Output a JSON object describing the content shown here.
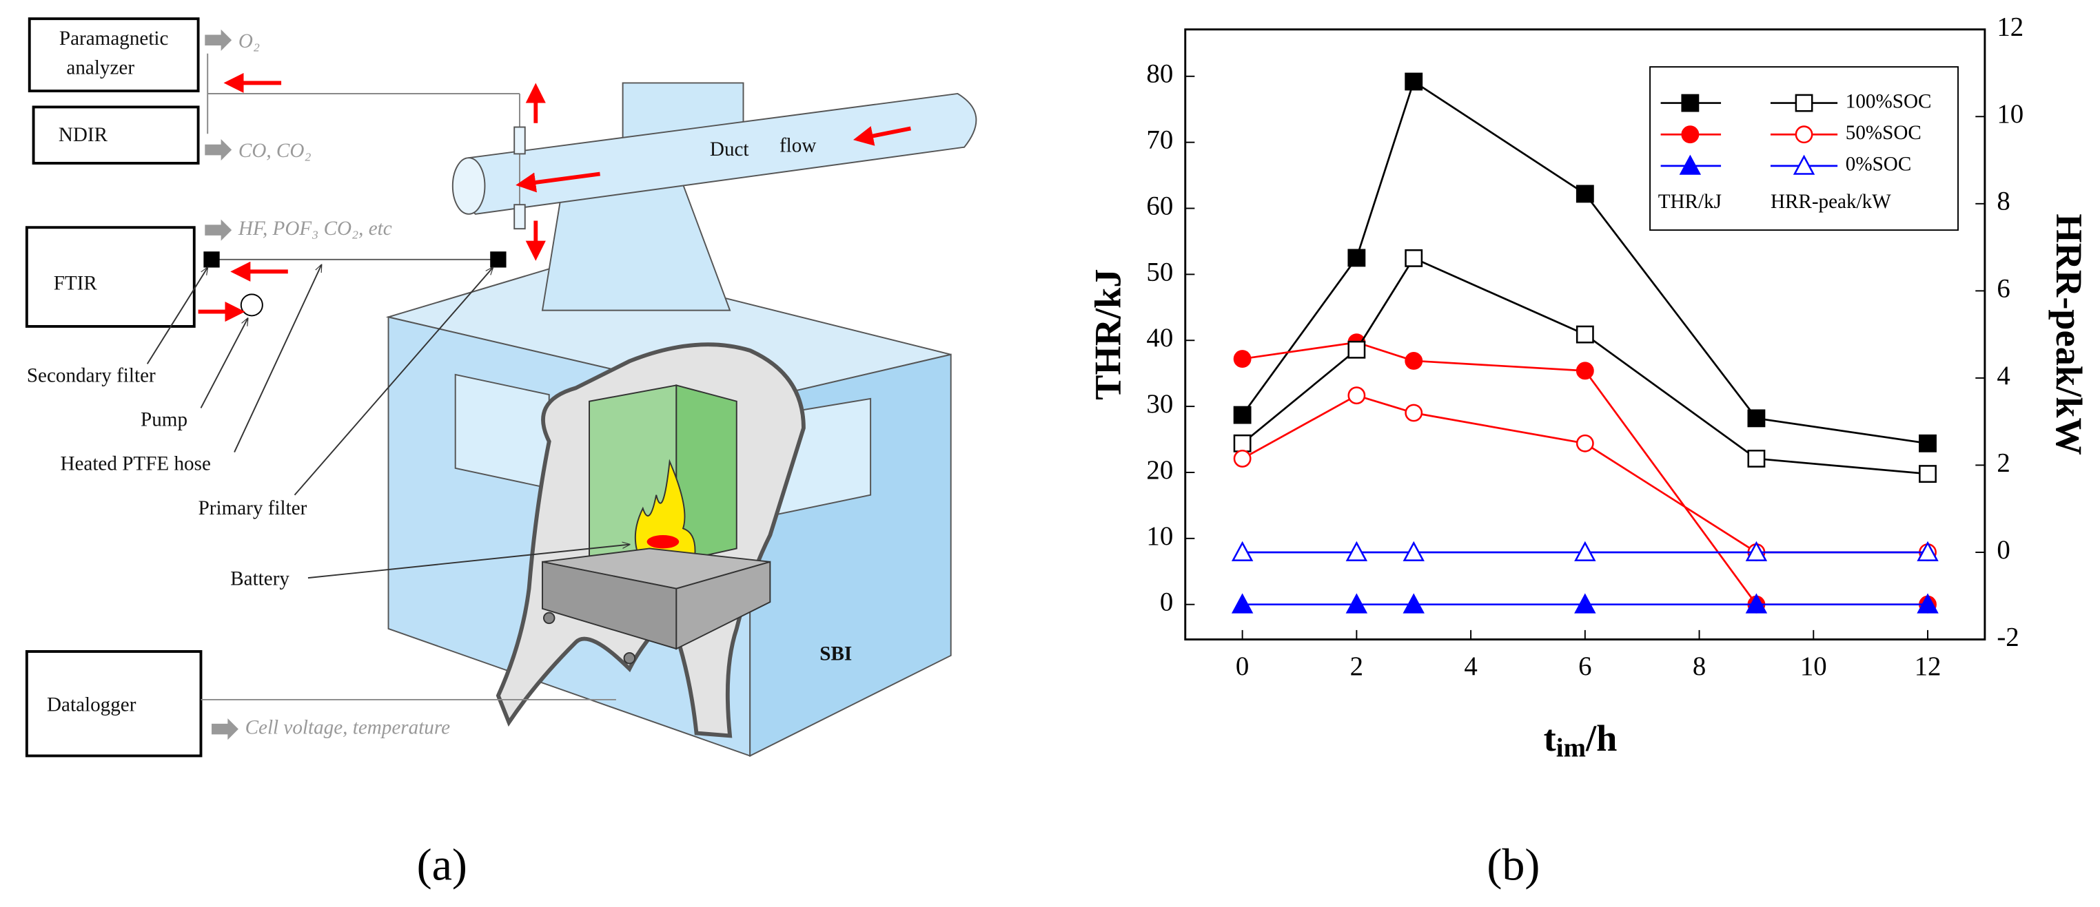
{
  "diagram": {
    "panel_label": "(a)",
    "analyzers": {
      "paramagnetic": [
        "Paramagnetic",
        "analyzer"
      ],
      "ndir": "NDIR",
      "ftir": "FTIR",
      "datalogger": "Datalogger"
    },
    "outputs": {
      "o2": "O₂",
      "co": "CO, CO₂",
      "ftir": "HF, POF₃ CO₂, etc",
      "datalogger": "Cell voltage, temperature"
    },
    "labels": {
      "secondary_filter": "Secondary filter",
      "pump": "Pump",
      "hose": "Heated PTFE hose",
      "primary_filter": "Primary filter",
      "battery": "Battery"
    },
    "duct": [
      "Duct",
      "flow"
    ],
    "sbi": "SBI"
  },
  "chart_data": {
    "type": "line",
    "panel_label": "(b)",
    "ylabel": "THR/kJ",
    "y2label": "HRR-peak/kW",
    "xlabel": [
      "t",
      "im",
      "/h"
    ],
    "x": [
      0,
      2,
      3,
      6,
      9,
      12
    ],
    "xlim": [
      -1,
      13
    ],
    "xticks": [
      0,
      2,
      4,
      6,
      8,
      10,
      12
    ],
    "ylim": [
      -5.3,
      87.1
    ],
    "yticks": [
      0,
      10,
      20,
      30,
      40,
      50,
      60,
      70,
      80
    ],
    "y2lim": [
      -2,
      12
    ],
    "y2ticks": [
      -2,
      0,
      2,
      4,
      6,
      8,
      10,
      12
    ],
    "legend": "upper right",
    "series": [
      {
        "name": "100%SOC",
        "color": "#000000",
        "marker": "square",
        "filled": true,
        "axis": "y",
        "values": [
          28.7,
          52.5,
          79.2,
          62.2,
          28.2,
          24.4
        ]
      },
      {
        "name": "50%SOC",
        "color": "#ff0000",
        "marker": "circle",
        "filled": true,
        "axis": "y",
        "values": [
          37.2,
          39.7,
          36.9,
          35.4,
          0,
          0
        ]
      },
      {
        "name": "0%SOC",
        "color": "#0000ff",
        "marker": "triangle",
        "filled": true,
        "axis": "y",
        "values": [
          0,
          0,
          0,
          0,
          0,
          0
        ]
      },
      {
        "name": "100%SOC",
        "color": "#000000",
        "marker": "square",
        "filled": false,
        "axis": "y2",
        "values": [
          2.5,
          4.65,
          6.75,
          5.0,
          2.15,
          1.8
        ]
      },
      {
        "name": "50%SOC",
        "color": "#ff0000",
        "marker": "circle",
        "filled": false,
        "axis": "y2",
        "values": [
          2.15,
          3.6,
          3.2,
          2.5,
          0,
          0
        ]
      },
      {
        "name": "0%SOC",
        "color": "#0000ff",
        "marker": "triangle",
        "filled": false,
        "axis": "y2",
        "values": [
          0,
          0,
          0,
          0,
          0,
          0
        ]
      }
    ]
  }
}
